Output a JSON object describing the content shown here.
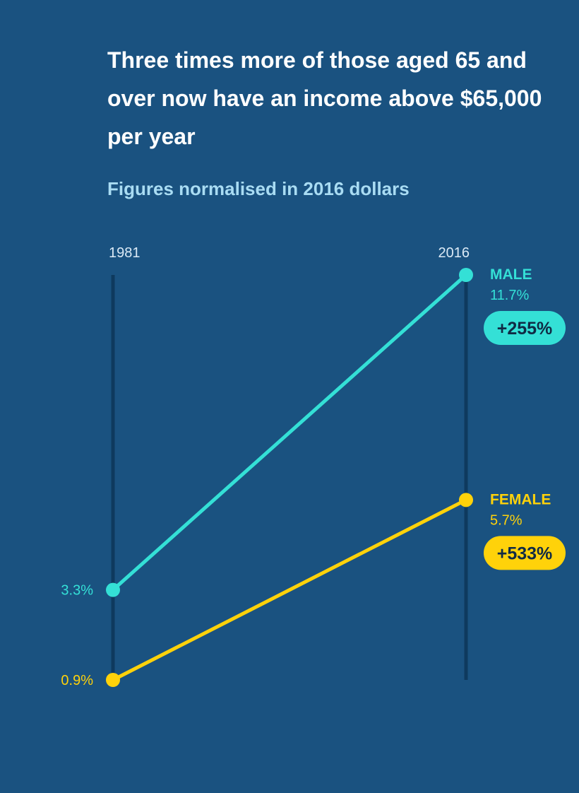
{
  "chart_data": {
    "type": "line",
    "title": "Three times more of those aged 65 and over now have an income above $65,000 per year",
    "subtitle": "Figures normalised in 2016 dollars",
    "x": [
      "1981",
      "2016"
    ],
    "series": [
      {
        "name": "MALE",
        "values": [
          3.3,
          11.7
        ],
        "start_label": "3.3%",
        "end_label": "11.7%",
        "change": "+255%",
        "color": "#34e0d6"
      },
      {
        "name": "FEMALE",
        "values": [
          0.9,
          5.7
        ],
        "start_label": "0.9%",
        "end_label": "5.7%",
        "change": "+533%",
        "color": "#ffd20a"
      }
    ],
    "ylim": [
      0.9,
      11.7
    ],
    "axis_line_color": "#0e3a5e"
  }
}
